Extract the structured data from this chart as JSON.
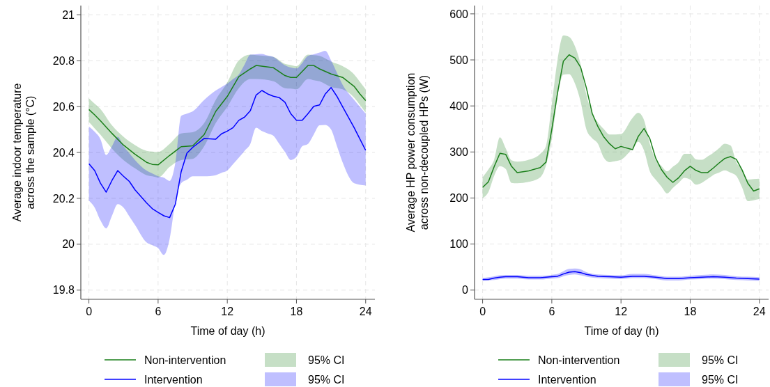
{
  "chart_data": [
    {
      "type": "line",
      "xlabel": "Time of day (h)",
      "ylabel": "Average indoor temperature\nacross the sample  (°C)",
      "xlim": [
        -0.7,
        24.8
      ],
      "ylim": [
        19.76,
        21.04
      ],
      "xticks": [
        0,
        6,
        12,
        18,
        24
      ],
      "yticks": [
        19.8,
        20,
        20.2,
        20.4,
        20.6,
        20.8,
        21
      ],
      "grid": true,
      "legend": "bottom",
      "annotations": [
        "95% CI",
        "95% CI"
      ],
      "series": [
        {
          "name": "Non-intervention",
          "color": "#1a7f1a",
          "x": [
            0,
            0.5,
            1,
            2,
            3,
            4,
            5,
            5.5,
            6,
            7,
            8,
            9,
            10,
            11,
            12,
            13,
            14,
            14.5,
            16,
            17,
            17.5,
            18,
            19,
            19.5,
            20,
            21,
            22,
            23,
            23.5,
            24
          ],
          "values": [
            20.587,
            20.564,
            20.538,
            20.483,
            20.432,
            20.392,
            20.357,
            20.348,
            20.346,
            20.387,
            20.425,
            20.429,
            20.478,
            20.579,
            20.644,
            20.73,
            20.764,
            20.779,
            20.769,
            20.735,
            20.727,
            20.727,
            20.779,
            20.779,
            20.764,
            20.742,
            20.727,
            20.688,
            20.655,
            20.626
          ],
          "upper": [
            20.636,
            20.612,
            20.589,
            20.518,
            20.468,
            20.432,
            20.407,
            20.404,
            20.402,
            20.437,
            20.483,
            20.488,
            20.528,
            20.629,
            20.705,
            20.801,
            20.826,
            20.824,
            20.816,
            20.786,
            20.781,
            20.776,
            20.826,
            20.824,
            20.821,
            20.796,
            20.776,
            20.74,
            20.708,
            20.675
          ],
          "lower": [
            20.533,
            20.505,
            20.477,
            20.417,
            20.367,
            20.331,
            20.301,
            20.296,
            20.291,
            20.337,
            20.367,
            20.372,
            20.427,
            20.528,
            20.599,
            20.68,
            20.72,
            20.72,
            20.71,
            20.68,
            20.678,
            20.675,
            20.72,
            20.715,
            20.71,
            20.685,
            20.675,
            20.639,
            20.607,
            20.574
          ]
        },
        {
          "name": "Intervention",
          "color": "#0000ff",
          "x": [
            0,
            0.5,
            1,
            1.5,
            2,
            2.5,
            3,
            3.5,
            4,
            5,
            5.5,
            6,
            6.5,
            7,
            7.5,
            8,
            8.5,
            9,
            10,
            11,
            11.5,
            12,
            12.5,
            13,
            13.5,
            14,
            14.5,
            15,
            15.5,
            16,
            16.5,
            17,
            17.5,
            18,
            18.5,
            19,
            19.5,
            20,
            20.5,
            21,
            21.5,
            22,
            23,
            24
          ],
          "values": [
            20.351,
            20.321,
            20.266,
            20.227,
            20.278,
            20.321,
            20.296,
            20.274,
            20.237,
            20.18,
            20.155,
            20.139,
            20.124,
            20.116,
            20.175,
            20.316,
            20.397,
            20.422,
            20.461,
            20.458,
            20.481,
            20.493,
            20.508,
            20.54,
            20.554,
            20.582,
            20.65,
            20.67,
            20.655,
            20.645,
            20.639,
            20.619,
            20.569,
            20.54,
            20.54,
            20.569,
            20.601,
            20.607,
            20.655,
            20.683,
            20.645,
            20.599,
            20.508,
            20.409
          ],
          "upper": [
            20.513,
            20.49,
            20.458,
            20.389,
            20.427,
            20.468,
            20.427,
            20.397,
            20.367,
            20.321,
            20.308,
            20.296,
            20.29,
            20.276,
            20.357,
            20.559,
            20.569,
            20.579,
            20.629,
            20.67,
            20.685,
            20.7,
            20.72,
            20.74,
            20.783,
            20.826,
            20.828,
            20.829,
            20.822,
            20.816,
            20.798,
            20.78,
            20.77,
            20.766,
            20.79,
            20.821,
            20.828,
            20.835,
            20.843,
            20.801,
            20.748,
            20.695,
            20.629,
            20.569
          ],
          "lower": [
            20.19,
            20.16,
            20.104,
            20.069,
            20.124,
            20.175,
            20.16,
            20.122,
            20.084,
            20.008,
            19.996,
            19.983,
            19.953,
            20.023,
            20.185,
            20.266,
            20.281,
            20.296,
            20.296,
            20.301,
            20.311,
            20.321,
            20.349,
            20.377,
            20.407,
            20.437,
            20.508,
            20.493,
            20.483,
            20.473,
            20.438,
            20.402,
            20.367,
            20.38,
            20.427,
            20.437,
            20.478,
            20.518,
            20.52,
            20.5,
            20.429,
            20.357,
            20.266,
            20.256
          ]
        }
      ]
    },
    {
      "type": "line",
      "xlabel": "Time of day (h)",
      "ylabel": "Average HP power consumption\nacross non-decoupled HPs (W)",
      "xlim": [
        -0.7,
        24.8
      ],
      "ylim": [
        -20,
        618
      ],
      "xticks": [
        0,
        6,
        12,
        18,
        24
      ],
      "yticks": [
        0,
        100,
        200,
        300,
        400,
        500,
        600
      ],
      "grid": true,
      "legend": "bottom",
      "annotations": [
        "95% CI",
        "95% CI"
      ],
      "series": [
        {
          "name": "Non-intervention",
          "color": "#1a7f1a",
          "x": [
            0,
            0.5,
            1,
            1.5,
            2,
            2.5,
            3,
            4,
            5,
            5.5,
            6,
            6.5,
            7,
            7.5,
            8,
            8.5,
            9,
            9.5,
            10,
            10.5,
            11,
            11.5,
            12,
            13,
            13.5,
            14,
            14.5,
            15,
            15.5,
            16,
            16.5,
            17,
            17.5,
            18,
            18.5,
            19,
            19.5,
            20,
            20.5,
            21,
            21.5,
            22,
            22.5,
            23,
            23.5,
            24
          ],
          "values": [
            223,
            235,
            268,
            297,
            295,
            269,
            255,
            259,
            266,
            278,
            349,
            429,
            497,
            511,
            504,
            484,
            439,
            384,
            355,
            333,
            318,
            307,
            312,
            305,
            334,
            351,
            329,
            287,
            262,
            245,
            234,
            244,
            259,
            269,
            260,
            255,
            255,
            265,
            276,
            286,
            290,
            284,
            261,
            232,
            215,
            220
          ],
          "upper": [
            245,
            262,
            283,
            332,
            308,
            282,
            279,
            283,
            296,
            313,
            404,
            500,
            553,
            550,
            530,
            490,
            424,
            384,
            364,
            350,
            338,
            338,
            339,
            374,
            385,
            369,
            318,
            283,
            270,
            258,
            268,
            278,
            296,
            296,
            284,
            283,
            290,
            298,
            308,
            318,
            314,
            278,
            262,
            240,
            241,
            242
          ],
          "lower": [
            200,
            213,
            248,
            269,
            263,
            233,
            232,
            235,
            245,
            271,
            328,
            419,
            468,
            469,
            449,
            409,
            349,
            330,
            318,
            288,
            278,
            280,
            283,
            308,
            322,
            303,
            258,
            240,
            225,
            210,
            222,
            233,
            244,
            240,
            229,
            233,
            241,
            250,
            255,
            260,
            255,
            248,
            223,
            193,
            195,
            198
          ]
        },
        {
          "name": "Intervention",
          "color": "#0000ff",
          "x": [
            0,
            0.5,
            1,
            1.5,
            2,
            3,
            4,
            5,
            6,
            6.5,
            7,
            7.5,
            8,
            8.5,
            9,
            10,
            11,
            12,
            13,
            14,
            15,
            16,
            17,
            18,
            19,
            20,
            21,
            22,
            23,
            24
          ],
          "values": [
            23,
            23,
            26,
            28,
            29,
            29,
            27,
            27,
            29,
            30,
            35,
            39,
            40,
            38,
            34,
            30,
            29,
            28,
            30,
            30,
            28,
            25,
            25,
            27,
            28,
            29,
            28,
            26,
            25,
            24
          ],
          "upper": [
            26,
            28,
            30,
            32,
            33,
            33,
            31,
            31,
            33,
            35,
            41,
            46,
            47,
            45,
            39,
            34,
            33,
            32,
            35,
            35,
            32,
            29,
            29,
            31,
            33,
            34,
            33,
            30,
            29,
            28
          ],
          "lower": [
            20,
            21,
            22,
            24,
            25,
            25,
            23,
            23,
            25,
            26,
            30,
            33,
            34,
            32,
            29,
            26,
            25,
            24,
            26,
            26,
            24,
            21,
            21,
            23,
            24,
            25,
            24,
            22,
            21,
            20
          ]
        }
      ]
    }
  ]
}
